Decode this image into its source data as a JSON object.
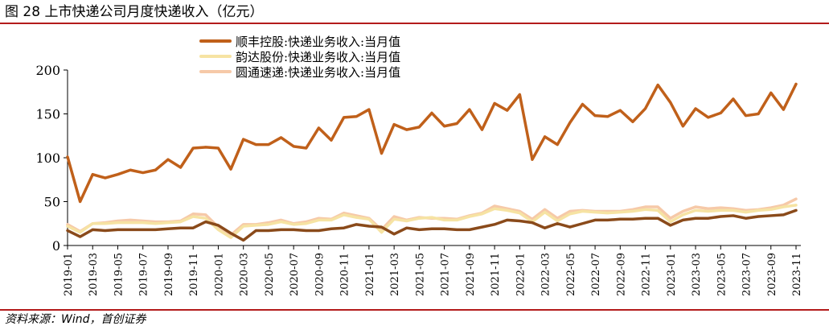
{
  "header": {
    "title": "图 28 上市快递公司月度快递收入（亿元）"
  },
  "footer": {
    "source": "资料来源：Wind，首创证券"
  },
  "colors": {
    "rule": "#b31b1b"
  },
  "chart_data": {
    "type": "line",
    "title": "",
    "xlabel": "",
    "ylabel": "",
    "ylim": [
      0,
      200
    ],
    "yticks": [
      0,
      50,
      100,
      150,
      200
    ],
    "xtick_labels": [
      "2019-01",
      "2019-03",
      "2019-05",
      "2019-07",
      "2019-09",
      "2019-11",
      "2020-01",
      "2020-03",
      "2020-05",
      "2020-07",
      "2020-09",
      "2020-11",
      "2021-01",
      "2021-03",
      "2021-05",
      "2021-07",
      "2021-09",
      "2021-11",
      "2022-01",
      "2022-03",
      "2022-05",
      "2022-07",
      "2022-09",
      "2022-11",
      "2023-01",
      "2023-03",
      "2023-05",
      "2023-07",
      "2023-09",
      "2023-11"
    ],
    "grid": false,
    "legend_position": "top-center",
    "x": [
      "2019-01",
      "2019-02",
      "2019-03",
      "2019-04",
      "2019-05",
      "2019-06",
      "2019-07",
      "2019-08",
      "2019-09",
      "2019-10",
      "2019-11",
      "2019-12",
      "2020-01",
      "2020-02",
      "2020-03",
      "2020-04",
      "2020-05",
      "2020-06",
      "2020-07",
      "2020-08",
      "2020-09",
      "2020-10",
      "2020-11",
      "2020-12",
      "2021-01",
      "2021-02",
      "2021-03",
      "2021-04",
      "2021-05",
      "2021-06",
      "2021-07",
      "2021-08",
      "2021-09",
      "2021-10",
      "2021-11",
      "2021-12",
      "2022-01",
      "2022-02",
      "2022-03",
      "2022-04",
      "2022-05",
      "2022-06",
      "2022-07",
      "2022-08",
      "2022-09",
      "2022-10",
      "2022-11",
      "2022-12",
      "2023-01",
      "2023-02",
      "2023-03",
      "2023-04",
      "2023-05",
      "2023-06",
      "2023-07",
      "2023-08",
      "2023-09",
      "2023-10",
      "2023-11"
    ],
    "series": [
      {
        "name": "顺丰控股:快递业务收入:当月值",
        "color": "#c0601a",
        "width": 3.5,
        "values": [
          101,
          50,
          81,
          77,
          81,
          86,
          83,
          86,
          98,
          89,
          111,
          112,
          111,
          87,
          121,
          115,
          115,
          123,
          113,
          111,
          134,
          120,
          146,
          147,
          155,
          105,
          138,
          132,
          135,
          151,
          136,
          139,
          155,
          132,
          162,
          154,
          172,
          98,
          124,
          115,
          140,
          161,
          148,
          147,
          154,
          141,
          156,
          183,
          163,
          136,
          156,
          146,
          151,
          167,
          148,
          150,
          174,
          155,
          184
        ]
      },
      {
        "name": "韵达股份:快递业务收入:当月值",
        "color": "#f6e3a3",
        "width": 3.5,
        "values": [
          22,
          15,
          25,
          25,
          26,
          26,
          26,
          25,
          26,
          27,
          33,
          31,
          18,
          9,
          22,
          23,
          24,
          27,
          24,
          25,
          29,
          29,
          35,
          32,
          30,
          15,
          30,
          28,
          31,
          32,
          29,
          29,
          33,
          36,
          42,
          40,
          37,
          27,
          38,
          28,
          36,
          39,
          38,
          37,
          38,
          39,
          41,
          40,
          27,
          35,
          40,
          39,
          40,
          40,
          38,
          40,
          41,
          44,
          46
        ]
      },
      {
        "name": "圆通速递:快递业务收入:当月值",
        "color": "#f6c9a8",
        "width": 3.5,
        "values": [
          24,
          16,
          25,
          26,
          28,
          29,
          28,
          27,
          27,
          28,
          36,
          35,
          21,
          12,
          24,
          24,
          26,
          29,
          25,
          27,
          31,
          30,
          37,
          34,
          31,
          18,
          33,
          29,
          32,
          31,
          31,
          30,
          34,
          37,
          45,
          42,
          39,
          30,
          41,
          31,
          39,
          40,
          39,
          39,
          39,
          41,
          44,
          44,
          31,
          39,
          44,
          42,
          43,
          42,
          40,
          41,
          43,
          46,
          53
        ]
      }
    ],
    "extra_series": [
      {
        "color": "#8a4a1a",
        "width": 3.5,
        "values": [
          17,
          10,
          18,
          17,
          18,
          18,
          18,
          18,
          19,
          20,
          20,
          27,
          23,
          14,
          6,
          17,
          17,
          18,
          18,
          17,
          17,
          19,
          20,
          24,
          22,
          21,
          13,
          20,
          18,
          19,
          19,
          18,
          18,
          21,
          24,
          29,
          28,
          26,
          20,
          25,
          21,
          25,
          29,
          29,
          30,
          30,
          31,
          31,
          23,
          29,
          31,
          31,
          33,
          34,
          31,
          33,
          34,
          35,
          40
        ]
      }
    ]
  }
}
